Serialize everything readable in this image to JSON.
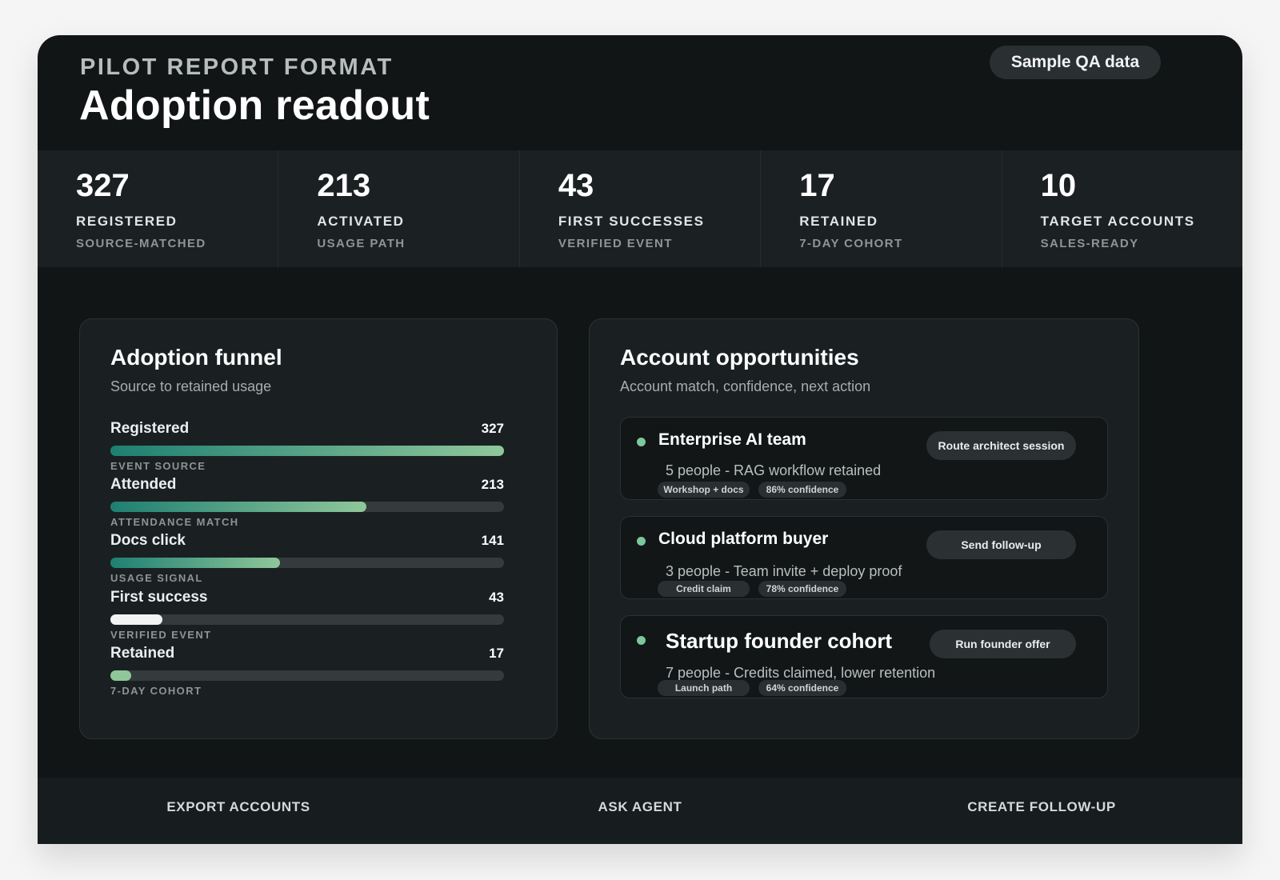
{
  "header": {
    "eyebrow": "PILOT REPORT FORMAT",
    "title": "Adoption readout",
    "badge": "Sample QA data"
  },
  "metrics": [
    {
      "value": "327",
      "label": "REGISTERED",
      "sub": "SOURCE-MATCHED"
    },
    {
      "value": "213",
      "label": "ACTIVATED",
      "sub": "USAGE PATH"
    },
    {
      "value": "43",
      "label": "FIRST SUCCESSES",
      "sub": "VERIFIED EVENT"
    },
    {
      "value": "17",
      "label": "RETAINED",
      "sub": "7-DAY COHORT"
    },
    {
      "value": "10",
      "label": "TARGET ACCOUNTS",
      "sub": "SALES-READY"
    }
  ],
  "funnel": {
    "title": "Adoption funnel",
    "subtitle": "Source to retained usage",
    "max": 327,
    "stages": [
      {
        "name": "Registered",
        "value": 327,
        "note": "EVENT SOURCE",
        "style": "teal"
      },
      {
        "name": "Attended",
        "value": 213,
        "note": "ATTENDANCE MATCH",
        "style": "teal"
      },
      {
        "name": "Docs click",
        "value": 141,
        "note": "USAGE SIGNAL",
        "style": "teal"
      },
      {
        "name": "First success",
        "value": 43,
        "note": "VERIFIED EVENT",
        "style": "white"
      },
      {
        "name": "Retained",
        "value": 17,
        "note": "7-DAY COHORT",
        "style": "mint"
      }
    ]
  },
  "accounts": {
    "title": "Account opportunities",
    "subtitle": "Account match, confidence, next action",
    "items": [
      {
        "name": "Enterprise AI team",
        "desc": "5 people - RAG workflow retained",
        "action": "Route architect session",
        "tags": [
          "Workshop + docs",
          "86% confidence"
        ]
      },
      {
        "name": "Cloud platform buyer",
        "desc": "3 people - Team invite + deploy proof",
        "action": "Send follow-up",
        "tags": [
          "Credit claim",
          "78% confidence"
        ]
      },
      {
        "name": "Startup founder cohort",
        "desc": "7 people - Credits claimed, lower retention",
        "action": "Run founder offer",
        "tags": [
          "Launch path",
          "64% confidence"
        ]
      }
    ]
  },
  "footer": {
    "export": "EXPORT ACCOUNTS",
    "ask": "ASK AGENT",
    "create": "CREATE FOLLOW-UP"
  },
  "colors": {
    "accent_teal_start": "#1e7f72",
    "accent_teal_end": "#8fc79a",
    "mint": "#8fc79a",
    "status_dot": "#7cc79b"
  }
}
